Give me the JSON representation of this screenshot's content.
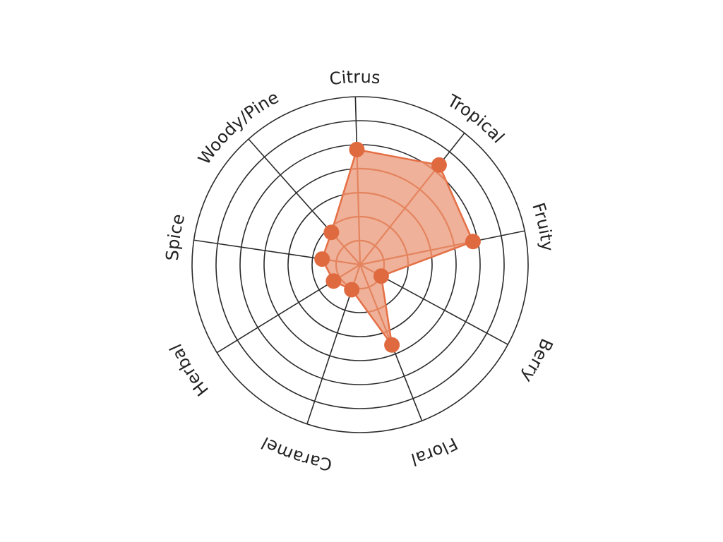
{
  "chart_data": {
    "type": "radar",
    "title": "",
    "categories": [
      "Citrus",
      "Tropical",
      "Fruity",
      "Berry",
      "Floral",
      "Caramel",
      "Herbal",
      "Spice",
      "Woody/Pine"
    ],
    "series": [
      {
        "values": [
          4.8,
          5.3,
          4.8,
          1.0,
          3.6,
          1.1,
          1.3,
          1.6,
          1.8
        ]
      }
    ],
    "rmax": 7,
    "rings": [
      1,
      2,
      3,
      4,
      5,
      6,
      7
    ],
    "colors": {
      "fill": "#efb199",
      "stroke": "#e56f45",
      "point": "#e06a40",
      "grid": "#2b2b2b",
      "spoke_inner": "#e4845f"
    }
  }
}
